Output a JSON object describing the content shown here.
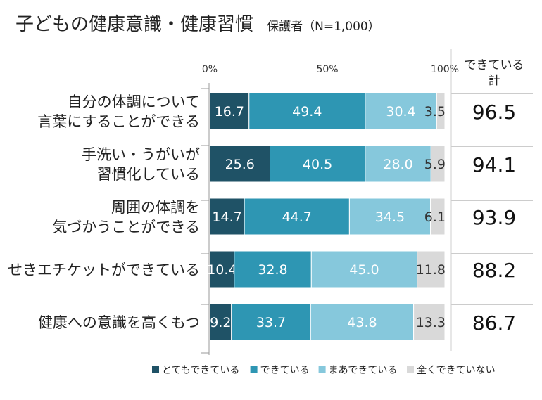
{
  "title": "子どもの健康意識・健康習慣",
  "subtitle": "保護者（N=1,000）",
  "chart_data": {
    "type": "bar",
    "orientation": "horizontal",
    "stacked": true,
    "title": "子どもの健康意識・健康習慣",
    "subtitle": "保護者（N=1,000）",
    "categories": [
      [
        "自分の体調について",
        "言葉にすることができる"
      ],
      [
        "手洗い・うがいが",
        "習慣化している"
      ],
      [
        "周囲の体調を",
        "気づかうことができる"
      ],
      [
        "せきエチケットができている"
      ],
      [
        "健康への意識を高くもつ"
      ]
    ],
    "series": [
      {
        "name": "とてもできている",
        "color": "#1f5266",
        "values": [
          16.7,
          25.6,
          14.7,
          10.4,
          9.2
        ]
      },
      {
        "name": "できている",
        "color": "#2e96b3",
        "values": [
          49.4,
          40.5,
          44.7,
          32.8,
          33.7
        ]
      },
      {
        "name": "まあできている",
        "color": "#86c8dc",
        "values": [
          30.4,
          28.0,
          34.5,
          45.0,
          43.8
        ]
      },
      {
        "name": "全くできていない",
        "color": "#d9d9d9",
        "values": [
          3.5,
          5.9,
          6.1,
          11.8,
          13.3
        ]
      }
    ],
    "axis": {
      "ticks": [
        "0%",
        "50%",
        "100%"
      ],
      "range": [
        0,
        100
      ]
    },
    "total_column": {
      "header": [
        "できている",
        "計"
      ],
      "values": [
        "96.5",
        "94.1",
        "93.9",
        "88.2",
        "86.7"
      ]
    },
    "legend_position": "bottom"
  }
}
